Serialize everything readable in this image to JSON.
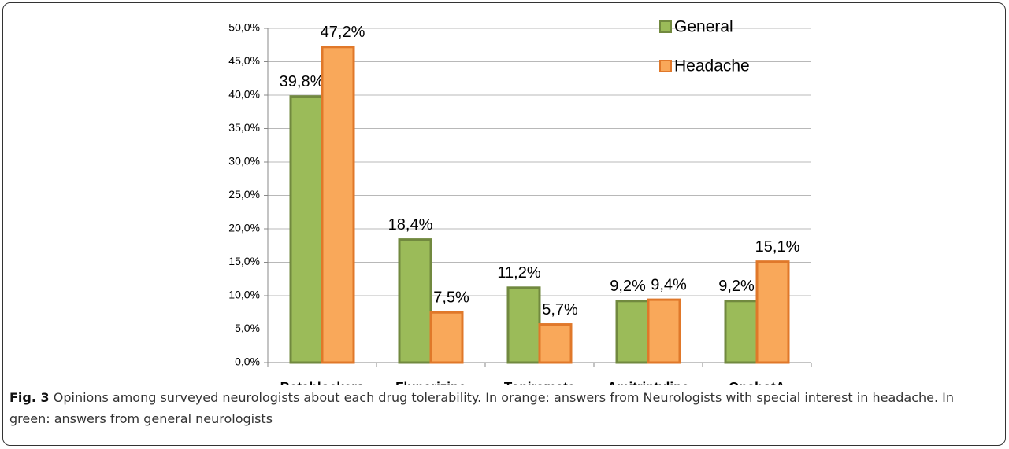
{
  "chart_data": {
    "type": "bar",
    "categories": [
      "Betablockers",
      "Flunarizine",
      "Topiramate",
      "Amitriptyline",
      "OnabotA"
    ],
    "series": [
      {
        "name": "General",
        "color": "#9bbb59",
        "values": [
          39.8,
          18.4,
          11.2,
          9.2,
          9.2
        ],
        "value_labels": [
          "39,8%",
          "18,4%",
          "11,2%",
          "9,2%",
          "9,2%"
        ]
      },
      {
        "name": "Headache",
        "color": "#f9a85a",
        "values": [
          47.2,
          7.5,
          5.7,
          9.4,
          15.1
        ],
        "value_labels": [
          "47,2%",
          "7,5%",
          "5,7%",
          "9,4%",
          "15,1%"
        ]
      }
    ],
    "ylim": [
      0,
      50
    ],
    "yticks": [
      {
        "value": 0,
        "label": "0,0%"
      },
      {
        "value": 5,
        "label": "5,0%"
      },
      {
        "value": 10,
        "label": "10,0%"
      },
      {
        "value": 15,
        "label": "15,0%"
      },
      {
        "value": 20,
        "label": "20,0%"
      },
      {
        "value": 25,
        "label": "25,0%"
      },
      {
        "value": 30,
        "label": "30,0%"
      },
      {
        "value": 35,
        "label": "35,0%"
      },
      {
        "value": 40,
        "label": "40,0%"
      },
      {
        "value": 45,
        "label": "45,0%"
      },
      {
        "value": 50,
        "label": "50,0%"
      }
    ],
    "grid": true,
    "legend": "top-right"
  },
  "caption": {
    "label": "Fig. 3",
    "text": "Opinions among surveyed neurologists about each drug tolerability. In orange: answers from Neurologists with special interest in headache. In green: answers from general neurologists"
  }
}
